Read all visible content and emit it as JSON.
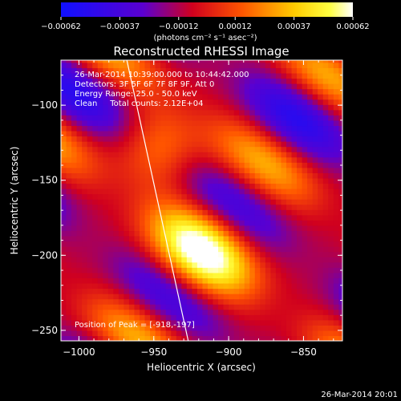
{
  "chart_data": {
    "type": "heatmap",
    "title": "Reconstructed RHESSI Image",
    "xlabel": "Heliocentric X (arcsec)",
    "ylabel": "Heliocentric Y (arcsec)",
    "xlim": [
      -1012,
      -824
    ],
    "ylim": [
      -257,
      -70
    ],
    "x_ticks": [
      -1000,
      -950,
      -900,
      -850
    ],
    "y_ticks": [
      -100,
      -150,
      -200,
      -250
    ],
    "x_tick_labels": [
      "−1000",
      "−950",
      "−900",
      "−850"
    ],
    "y_tick_labels": [
      "−100",
      "−150",
      "−200",
      "−250"
    ],
    "colorbar": {
      "min": -0.00062,
      "max": 0.00062,
      "tick_values": [
        -0.00062,
        -0.00037,
        -0.00012,
        0.00012,
        0.00037,
        0.00062
      ],
      "tick_labels": [
        "−0.00062",
        "−0.00037",
        "−0.00012",
        "0.00012",
        "0.00037",
        "0.00062"
      ],
      "units_label": "(photons cm⁻² s⁻¹ asec⁻²)",
      "colors": [
        "#1010ff",
        "#6a00c8",
        "#e6001a",
        "#ff7a00",
        "#ffff20",
        "#ffffff"
      ]
    },
    "annotations": [
      "26-Mar-2014 10:39:00.000 to 10:44:42.000",
      "Detectors: 3F 5F 6F 7F 8F 9F, Att 0",
      "Energy Range: 25.0 - 50.0 keV",
      "Clean     Total counts: 2.12E+04"
    ],
    "peak_label": "Position of Peak = [-918,-197]",
    "peak": {
      "x": -918,
      "y": -197
    },
    "limb_line": [
      {
        "x": -968,
        "y": -70
      },
      {
        "x": -927,
        "y": -257
      }
    ]
  },
  "footer_timestamp": "26-Mar-2014 20:01"
}
